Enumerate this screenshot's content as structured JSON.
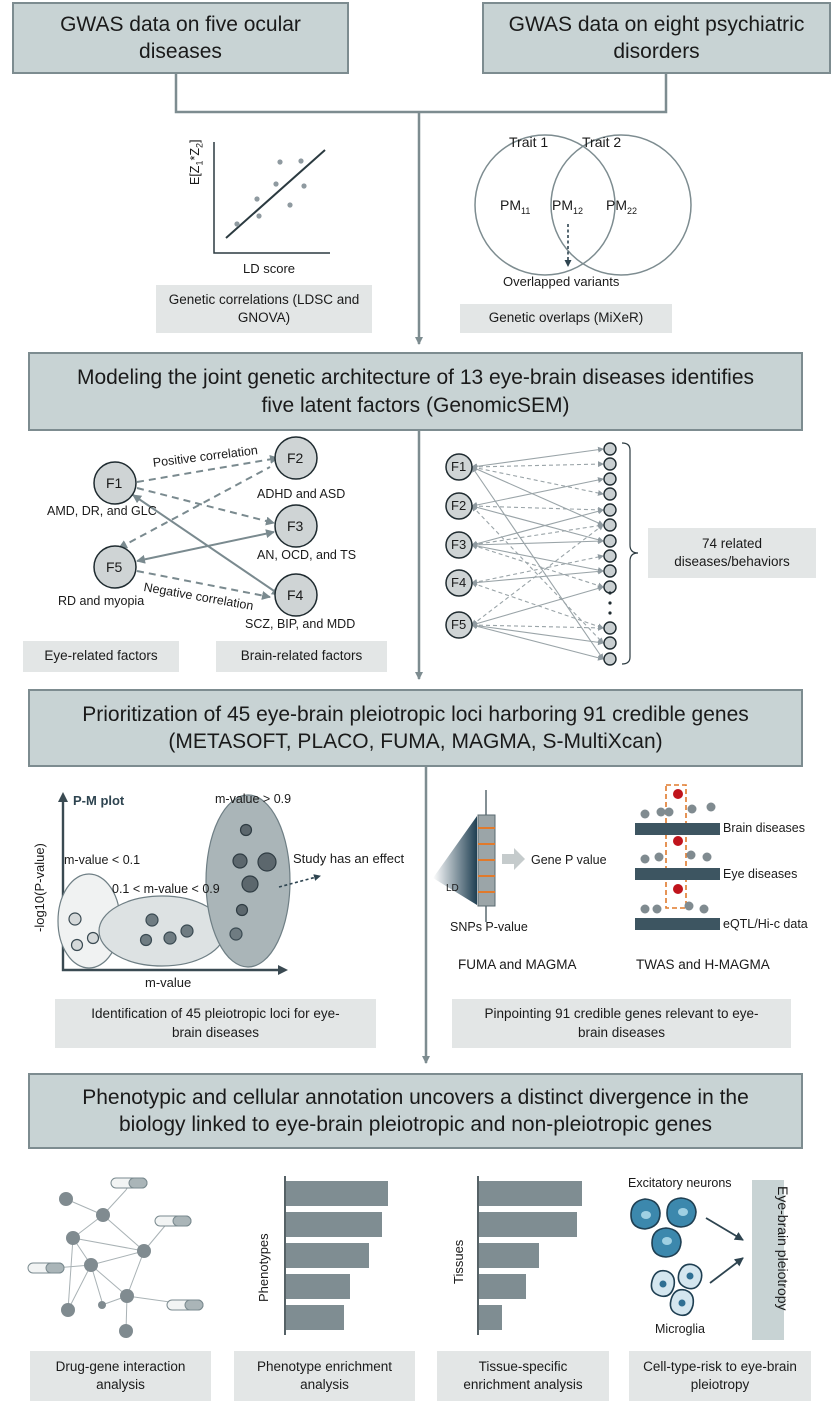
{
  "top_left_header": "GWAS data on five ocular diseases",
  "top_right_header": "GWAS data on eight psychiatric disorders",
  "ldsc_panel": {
    "y_label": "E[Z1*Z2]",
    "x_label": "LD score",
    "caption": "Genetic correlations (LDSC and GNOVA)"
  },
  "mixer_panel": {
    "trait1": "Trait 1",
    "trait2": "Trait 2",
    "pm11": "PM11",
    "pm12": "PM12",
    "pm22": "PM22",
    "overlap_label": "Overlapped variants",
    "caption": "Genetic overlaps (MiXeR)"
  },
  "section2_header": "Modeling the joint genetic architecture of 13 eye-brain diseases identifies five latent factors (GenomicSEM)",
  "factor_panel": {
    "factors": [
      {
        "id": "F1",
        "desc": "AMD, DR, and GLC"
      },
      {
        "id": "F2",
        "desc": "ADHD and ASD"
      },
      {
        "id": "F3",
        "desc": "AN, OCD, and TS"
      },
      {
        "id": "F4",
        "desc": "SCZ, BIP, and MDD"
      },
      {
        "id": "F5",
        "desc": "RD and myopia"
      }
    ],
    "positive_label": "Positive correlation",
    "negative_label": "Negative correlation",
    "eye_caption": "Eye-related factors",
    "brain_caption": "Brain-related factors"
  },
  "network_panel": {
    "factors": [
      "F1",
      "F2",
      "F3",
      "F4",
      "F5"
    ],
    "caption": "74 related diseases/behaviors"
  },
  "section3_header": "Prioritization of 45 eye-brain pleiotropic loci harboring 91 credible genes (METASOFT, PLACO, FUMA, MAGMA, S-MultiXcan)",
  "pm_plot": {
    "title": "P-M plot",
    "y_label": "-log10(P-value)",
    "x_label": "m-value",
    "low": "m-value < 0.1",
    "mid": "0.1 < m-value < 0.9",
    "high": "m-value > 0.9",
    "effect": "Study has an effect",
    "caption": "Identification of 45 pleiotropic loci for eye-brain diseases"
  },
  "fuma_panel": {
    "ld": "LD",
    "snp": "SNPs P-value",
    "gene": "Gene P value",
    "title": "FUMA and MAGMA"
  },
  "twas_panel": {
    "brain": "Brain diseases",
    "eye": "Eye diseases",
    "eqtl": "eQTL/Hi-c data",
    "title": "TWAS and H-MAGMA"
  },
  "genes_caption": "Pinpointing 91 credible genes relevant to eye-brain diseases",
  "section4_header": "Phenotypic and cellular annotation uncovers a distinct divergence in the biology linked to eye-brain pleiotropic and non-pleiotropic genes",
  "drug_caption": "Drug-gene interaction analysis",
  "phenotype_panel": {
    "y_label": "Phenotypes",
    "values": [
      0.98,
      0.92,
      0.8,
      0.62,
      0.56
    ],
    "caption": "Phenotype enrichment analysis"
  },
  "tissue_panel": {
    "y_label": "Tissues",
    "values": [
      1.0,
      0.95,
      0.58,
      0.46,
      0.22
    ],
    "caption": "Tissue-specific enrichment analysis"
  },
  "celltype_panel": {
    "excitatory": "Excitatory neurons",
    "microglia": "Microglia",
    "pleiotropy": "Eye-brain pleiotropy",
    "caption": "Cell-type-risk to eye-brain pleiotropy"
  },
  "colors": {
    "header_fill": "#c8d3d4",
    "caption_fill": "#e3e6e6",
    "connector": "#7d8c90",
    "bar": "#7f8d92",
    "dark_slate": "#3d5561",
    "node_gray": "#808b90",
    "neuron_blue": "#3c88ad",
    "microglia_blue": "#cfe3ee",
    "dot_red": "#c0141c"
  }
}
